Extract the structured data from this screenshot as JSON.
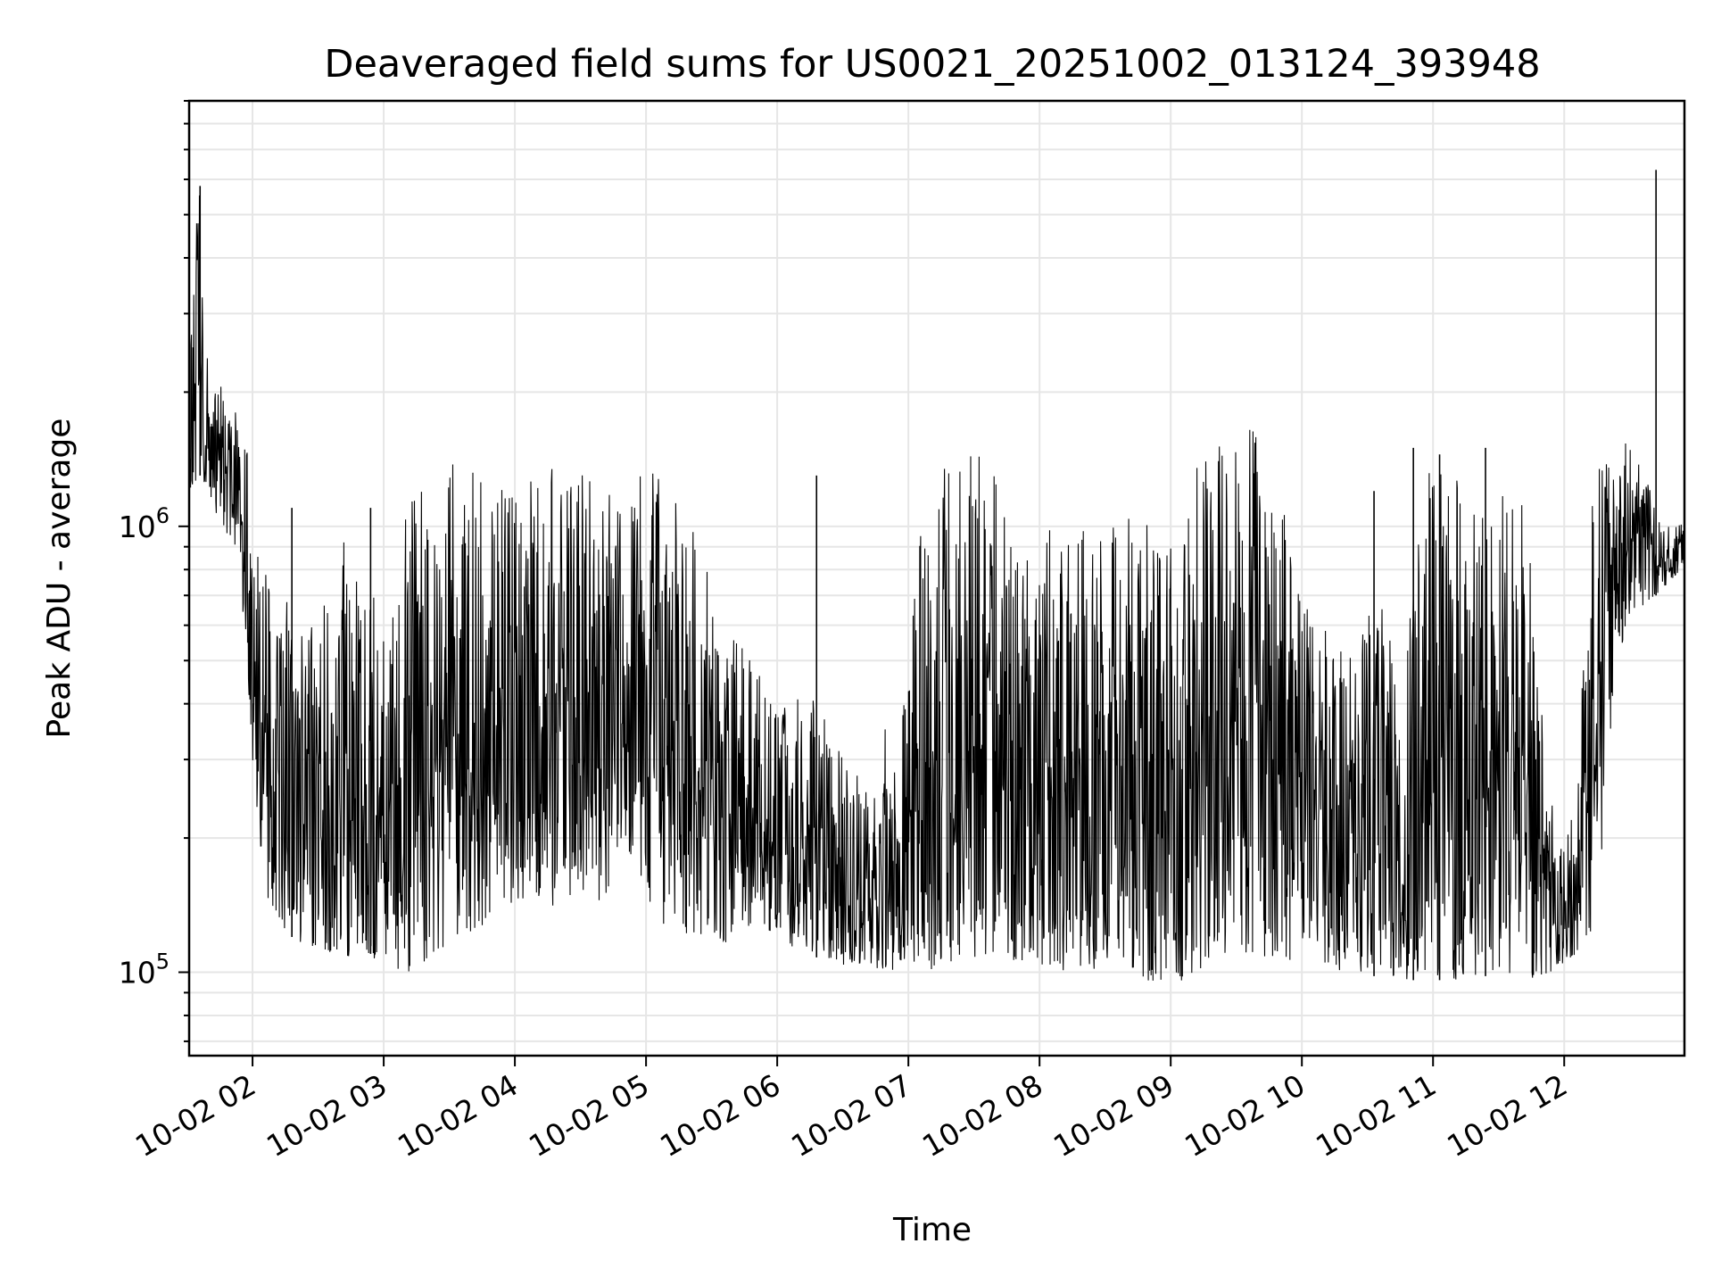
{
  "chart_data": {
    "type": "line",
    "title": "Deaveraged field sums for US0021_20251002_013124_393948",
    "xlabel": "Time",
    "ylabel": "Peak ADU - average",
    "yscale": "log",
    "xlim": [
      "2025-10-02 01:31",
      "2025-10-02 12:55"
    ],
    "ylim": [
      65000,
      9000000
    ],
    "x_ticks": [
      "10-02 02",
      "10-02 03",
      "10-02 04",
      "10-02 05",
      "10-02 06",
      "10-02 07",
      "10-02 08",
      "10-02 09",
      "10-02 10",
      "10-02 11",
      "10-02 12"
    ],
    "y_ticks": [
      {
        "value": 100000,
        "base": "10",
        "exp": "5"
      },
      {
        "value": 1000000,
        "base": "10",
        "exp": "6"
      }
    ],
    "grid": true,
    "line_color": "#000000",
    "grid_color": "#e6e6e6",
    "series": [
      {
        "hours": [
          1.52,
          1.55,
          1.6,
          1.65,
          1.7,
          1.75,
          1.8,
          1.85,
          1.9,
          1.95,
          2.0,
          2.05,
          2.1,
          2.2,
          2.3,
          2.4,
          2.5,
          2.6,
          2.7,
          2.8,
          2.9,
          3.0,
          3.1,
          3.2,
          3.3,
          3.4,
          3.5,
          3.6,
          3.7,
          3.8,
          3.9,
          4.0,
          4.1,
          4.2,
          4.3,
          4.4,
          4.5,
          4.6,
          4.7,
          4.8,
          4.9,
          5.0,
          5.1,
          5.2,
          5.3,
          5.4,
          5.5,
          5.6,
          5.7,
          5.8,
          5.9,
          6.0,
          6.1,
          6.2,
          6.3,
          6.4,
          6.5,
          6.6,
          6.7,
          6.8,
          6.9,
          7.0,
          7.1,
          7.2,
          7.3,
          7.4,
          7.5,
          7.6,
          7.7,
          7.8,
          7.9,
          8.0,
          8.1,
          8.2,
          8.3,
          8.4,
          8.5,
          8.6,
          8.7,
          8.8,
          8.9,
          9.0,
          9.1,
          9.2,
          9.3,
          9.4,
          9.5,
          9.6,
          9.7,
          9.8,
          9.9,
          10.0,
          10.1,
          10.2,
          10.3,
          10.4,
          10.5,
          10.6,
          10.7,
          10.8,
          10.9,
          11.0,
          11.1,
          11.2,
          11.3,
          11.4,
          11.5,
          11.6,
          11.7,
          11.8,
          11.9,
          12.0,
          12.1,
          12.2,
          12.3,
          12.4,
          12.5,
          12.6,
          12.7,
          12.8,
          12.9
        ],
        "upper": [
          2200000,
          4500000,
          5800000,
          2500000,
          1800000,
          2500000,
          1700000,
          1800000,
          2000000,
          1800000,
          950000,
          900000,
          800000,
          750000,
          700000,
          650000,
          700000,
          650000,
          1100000,
          850000,
          750000,
          600000,
          800000,
          1200000,
          1300000,
          1250000,
          1350000,
          1500000,
          1300000,
          1400000,
          1350000,
          1400000,
          1450000,
          1500000,
          1350000,
          1300000,
          1350000,
          1300000,
          1350000,
          1400000,
          1300000,
          1400000,
          1300000,
          1250000,
          1200000,
          900000,
          800000,
          600000,
          550000,
          500000,
          450000,
          420000,
          380000,
          450000,
          400000,
          350000,
          300000,
          280000,
          250000,
          380000,
          280000,
          500000,
          1300000,
          1400000,
          1400000,
          1350000,
          1500000,
          1450000,
          1200000,
          1000000,
          900000,
          800000,
          1100000,
          1000000,
          1050000,
          900000,
          1100000,
          1000000,
          1200000,
          1100000,
          1000000,
          900000,
          1200000,
          1400000,
          1500000,
          1600000,
          1650000,
          1700000,
          1500000,
          1200000,
          1000000,
          700000,
          600000,
          600000,
          550000,
          500000,
          650000,
          700000,
          550000,
          500000,
          1400000,
          1300000,
          1350000,
          1350000,
          1350000,
          1300000,
          1350000,
          1300000,
          1350000,
          500000,
          250000,
          200000,
          250000,
          1200000,
          1500000,
          1300000,
          1700000,
          1400000,
          1100000,
          1000000,
          1100000
        ],
        "lower": [
          1100000,
          1200000,
          1300000,
          1100000,
          1050000,
          1000000,
          950000,
          900000,
          850000,
          500000,
          280000,
          180000,
          150000,
          130000,
          120000,
          115000,
          110000,
          110000,
          105000,
          108000,
          110000,
          100000,
          102000,
          100000,
          105000,
          110000,
          115000,
          120000,
          125000,
          130000,
          130000,
          140000,
          150000,
          145000,
          140000,
          150000,
          145000,
          140000,
          150000,
          200000,
          180000,
          150000,
          130000,
          125000,
          120000,
          120000,
          125000,
          115000,
          125000,
          125000,
          120000,
          125000,
          115000,
          110000,
          108000,
          106000,
          104000,
          104000,
          102000,
          102000,
          100000,
          100000,
          100000,
          102000,
          105000,
          106000,
          108000,
          110000,
          108000,
          106000,
          104000,
          104000,
          104000,
          100000,
          100000,
          98000,
          96000,
          96000,
          96000,
          95000,
          96000,
          95000,
          96000,
          98000,
          100000,
          105000,
          110000,
          110000,
          108000,
          106000,
          104000,
          104000,
          102000,
          102000,
          100000,
          100000,
          98000,
          98000,
          98000,
          96000,
          96000,
          96000,
          96000,
          96000,
          98000,
          98000,
          100000,
          98000,
          96000,
          98000,
          100000,
          105000,
          110000,
          120000,
          200000,
          500000,
          600000,
          650000,
          700000,
          750000,
          800000
        ],
        "spikes": [
          {
            "hour": 1.6,
            "value": 5800000
          },
          {
            "hour": 2.3,
            "value": 1100000
          },
          {
            "hour": 2.9,
            "value": 1100000
          },
          {
            "hour": 6.3,
            "value": 1300000
          },
          {
            "hour": 10.55,
            "value": 1200000
          },
          {
            "hour": 10.85,
            "value": 1500000
          },
          {
            "hour": 11.05,
            "value": 1450000
          },
          {
            "hour": 11.4,
            "value": 1500000
          },
          {
            "hour": 12.7,
            "value": 6300000
          }
        ]
      }
    ]
  }
}
